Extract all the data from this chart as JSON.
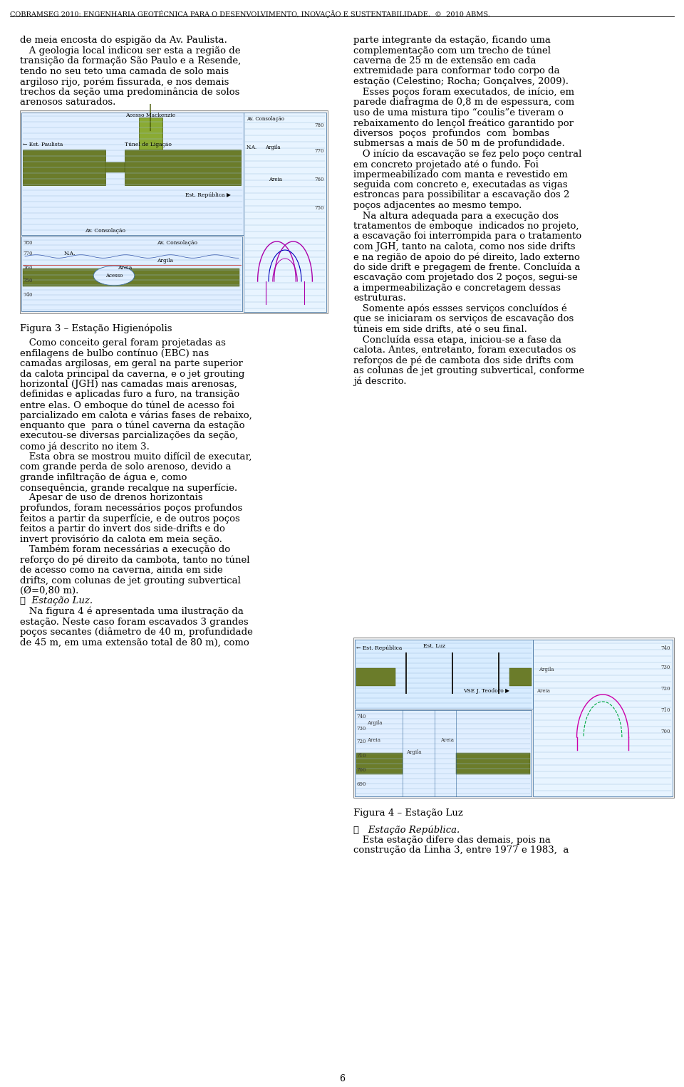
{
  "page_width": 9.6,
  "page_height": 15.26,
  "dpi": 100,
  "bg_color": "#ffffff",
  "header_text": "COBRAMSEG 2010: ENGENHARIA GEOTÉCNICA PARA O DESENVOLVIMENTO, INOVAÇÃO E SUSTENTABILIDADE.  ©  2010 ABMS.",
  "header_fontsize": 7.0,
  "header_color": "#000000",
  "page_number": "6",
  "body_fontsize": 9.5,
  "body_color": "#000000",
  "left_col_text": [
    "de meia encosta do espigão da Av. Paulista.",
    "   A geologia local indicou ser esta a região de",
    "transição da formação São Paulo e a Resende,",
    "tendo no seu teto uma camada de solo mais",
    "argiloso rijo, porém fissurada, e nos demais",
    "trechos da seção uma predominância de solos",
    "arenosos saturados."
  ],
  "figura3_caption": "Figura 3 – Estação Higienópolis",
  "left_col_text2": [
    "   Como conceito geral foram projetadas as",
    "enfilagens de bulbo contínuo (EBC) nas",
    "camadas argilosas, em geral na parte superior",
    "da calota principal da caverna, e o jet grouting",
    "horizontal (JGH) nas camadas mais arenosas,",
    "definidas e aplicadas furo a furo, na transição",
    "entre elas. O emboque do túnel de acesso foi",
    "parcializado em calota e várias fases de rebaixo,",
    "enquanto que  para o túnel caverna da estação",
    "executou-se diversas parcializações da seção,",
    "como já descrito no item 3.",
    "   Esta obra se mostrou muito difícil de executar,",
    "com grande perda de solo arenoso, devido a",
    "grande infiltração de água e, como",
    "consequência, grande recalque na superfície.",
    "   Apesar de uso de drenos horizontais",
    "profundos, foram necessários poços profundos",
    "feitos a partir da superfície, e de outros poços",
    "feitos a partir do invert dos side-drifts e do",
    "invert provisório da calota em meia seção.",
    "   Também foram necessárias a execução do",
    "reforço do pé direito da cambota, tanto no túnel",
    "de acesso como na caverna, ainda em side",
    "drifts, com colunas de jet grouting subvertical",
    "(Ø=0,80 m).",
    "❖  Estação Luz.",
    "   Na figura 4 é apresentada uma ilustração da",
    "estação. Neste caso foram escavados 3 grandes",
    "poços secantes (diâmetro de 40 m, profundidade",
    "de 45 m, em uma extensão total de 80 m), como"
  ],
  "right_col_text": [
    "parte integrante da estação, ficando uma",
    "complementação com um trecho de túnel",
    "caverna de 25 m de extensão em cada",
    "extremidade para conformar todo corpo da",
    "estação (Celestino; Rocha; Gonçalves, 2009).",
    "   Esses poços foram executados, de início, em",
    "parede diafragma de 0,8 m de espessura, com",
    "uso de uma mistura tipo “coulis”e tiveram o",
    "rebaixamento do lençol freático garantido por",
    "diversos  poços  profundos  com  bombas",
    "submersas a mais de 50 m de profundidade.",
    "   O início da escavação se fez pelo poço central",
    "em concreto projetado até o fundo. Foi",
    "impermeabilizado com manta e revestido em",
    "seguida com concreto e, executadas as vigas",
    "estroncas para possibilitar a escavação dos 2",
    "poços adjacentes ao mesmo tempo.",
    "   Na altura adequada para a execução dos",
    "tratamentos de emboque  indicados no projeto,",
    "a escavação foi interrompida para o tratamento",
    "com JGH, tanto na calota, como nos side drifts",
    "e na região de apoio do pé direito, lado externo",
    "do side drift e pregagem de frente. Concluída a",
    "escavação com projetado dos 2 poços, segui-se",
    "a impermeabilização e concretagem dessas",
    "estruturas.",
    "   Somente após essses serviços concluídos é",
    "que se iniciaram os serviços de escavação dos",
    "túneis em side drifts, até o seu final.",
    "   Concluída essa etapa, iniciou-se a fase da",
    "calota. Antes, entretanto, foram executados os",
    "reforços de pé de cambota dos side drifts com",
    "as colunas de jet grouting subvertical, conforme",
    "já descrito."
  ],
  "figura4_caption": "Figura 4 – Estação Luz",
  "right_col_text2": [
    "❖   Estação República.",
    "   Esta estação difere das demais, pois na",
    "construção da Linha 3, entre 1977 e 1983,  a"
  ]
}
